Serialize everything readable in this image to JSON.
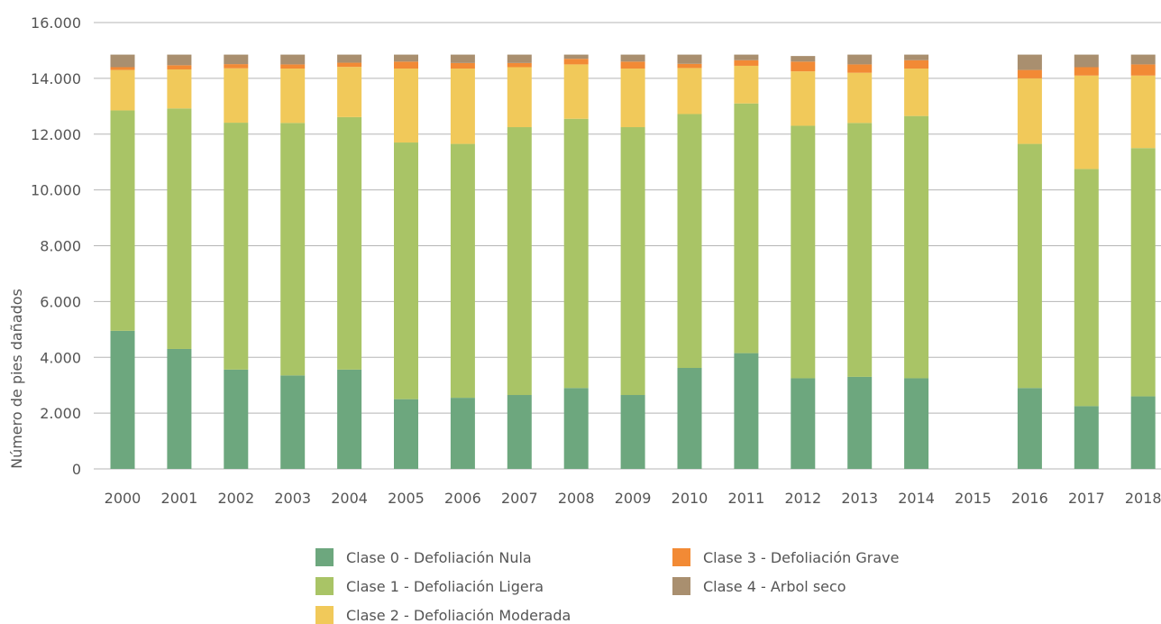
{
  "chart_data": {
    "type": "bar",
    "stacked": true,
    "ylabel": "Número de pies dañados",
    "ylim": [
      0,
      16000
    ],
    "yticks": [
      0,
      2000,
      4000,
      6000,
      8000,
      10000,
      12000,
      14000,
      16000
    ],
    "ytick_labels": [
      "0",
      "2.000",
      "4.000",
      "6.000",
      "8.000",
      "10.000",
      "12.000",
      "14.000",
      "16.000"
    ],
    "grid": "horizontal",
    "legend_position": "bottom",
    "categories": [
      "2000",
      "2001",
      "2002",
      "2003",
      "2004",
      "2005",
      "2006",
      "2007",
      "2008",
      "2009",
      "2010",
      "2011",
      "2012",
      "2013",
      "2014",
      "2015",
      "2016",
      "2017",
      "2018"
    ],
    "series": [
      {
        "name": "Clase 0 - Defoliación Nula",
        "color": "#6da77e",
        "values": [
          4950,
          4300,
          3560,
          3350,
          3560,
          2500,
          2550,
          2650,
          2900,
          2650,
          3620,
          4150,
          3250,
          3300,
          3250,
          null,
          2900,
          2250,
          2600
        ]
      },
      {
        "name": "Clase 1 - Defoliación Ligera",
        "color": "#a9c466",
        "values": [
          7900,
          8620,
          8850,
          9050,
          9050,
          9200,
          9100,
          9600,
          9650,
          9600,
          9100,
          8950,
          9050,
          9100,
          9400,
          null,
          8750,
          8500,
          8900
        ]
      },
      {
        "name": "Clase 2 - Defoliación Moderada",
        "color": "#f1c95a",
        "values": [
          1450,
          1400,
          1950,
          1950,
          1800,
          2650,
          2700,
          2150,
          1950,
          2100,
          1650,
          1350,
          1950,
          1800,
          1700,
          null,
          2350,
          3350,
          2600
        ]
      },
      {
        "name": "Clase 3 - Defoliación Grave",
        "color": "#f28a35",
        "values": [
          100,
          150,
          150,
          150,
          150,
          250,
          200,
          150,
          200,
          250,
          150,
          200,
          350,
          300,
          300,
          null,
          300,
          300,
          400
        ]
      },
      {
        "name": "Clase 4 - Arbol seco",
        "color": "#a98f6f",
        "values": [
          450,
          380,
          340,
          350,
          290,
          250,
          300,
          300,
          150,
          250,
          330,
          200,
          200,
          350,
          200,
          null,
          550,
          450,
          350
        ]
      }
    ]
  }
}
